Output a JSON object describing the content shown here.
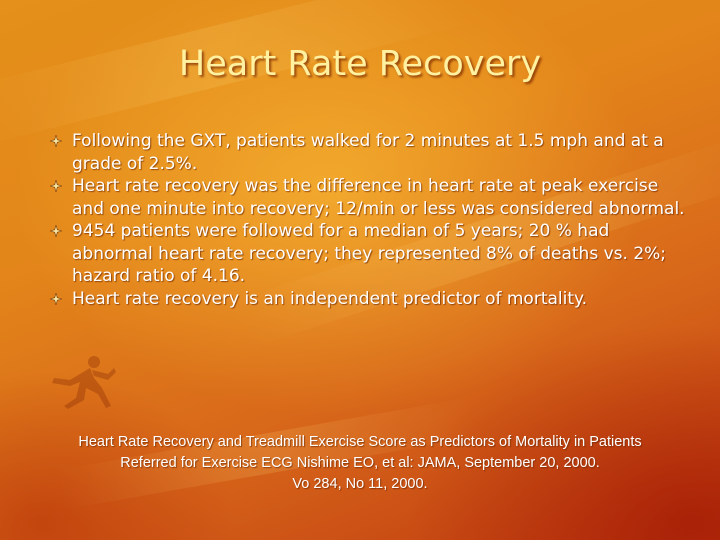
{
  "slide": {
    "title": "Heart Rate Recovery",
    "bullets": [
      "Following the GXT, patients walked for 2 minutes at 1.5 mph and at a grade of 2.5%.",
      "Heart rate recovery was the difference in heart rate at peak exercise and one minute into recovery; 12/min or less was considered abnormal.",
      "9454 patients were followed for a median of 5 years; 20 % had abnormal heart rate recovery; they represented 8% of deaths vs. 2%; hazard ratio of 4.16.",
      "Heart rate recovery is an independent predictor of mortality."
    ],
    "citation": {
      "line1": "Heart Rate Recovery and Treadmill Exercise Score as Predictors of Mortality in Patients",
      "line2": "Referred for Exercise ECG  Nishime EO, et al: JAMA, September 20, 2000.",
      "line3": "Vo 284, No 11, 2000."
    }
  },
  "theme": {
    "title_color": "#fff1a0",
    "text_color": "#ffffff",
    "bullet_icon": "four-point-star-icon"
  }
}
